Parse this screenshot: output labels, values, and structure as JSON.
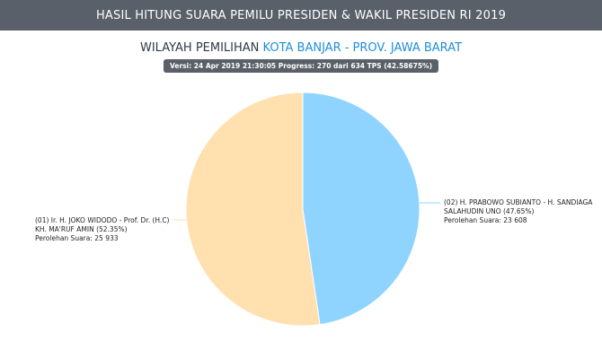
{
  "header": {
    "title": "HASIL HITUNG SUARA PEMILU PRESIDEN & WAKIL PRESIDEN RI 2019"
  },
  "region": {
    "prefix": "WILAYAH PEMILIHAN",
    "name": "KOTA BANJAR - PROV. JAWA BARAT"
  },
  "version_badge": "Versi: 24 Apr 2019 21:30:05 Progress: 270 dari 634 TPS (42.58675%)",
  "chart_data": {
    "type": "pie",
    "title": "",
    "colors": [
      "#ffe0ae",
      "#8fd4ff"
    ],
    "slices": [
      {
        "label_line1": "(01) Ir. H. JOKO WIDODO - Prof. Dr. (H.C)",
        "label_line2": "KH. MA'RUF AMIN (52.35%)",
        "label_line3": "Perolehan Suara: 25 933",
        "percent": 52.35,
        "votes": 25933
      },
      {
        "label_line1": "(02) H. PRABOWO SUBIANTO - H. SANDIAGA",
        "label_line2": "SALAHUDIN UNO (47.65%)",
        "label_line3": "Perolehan Suara: 23 608",
        "percent": 47.65,
        "votes": 23608
      }
    ]
  }
}
